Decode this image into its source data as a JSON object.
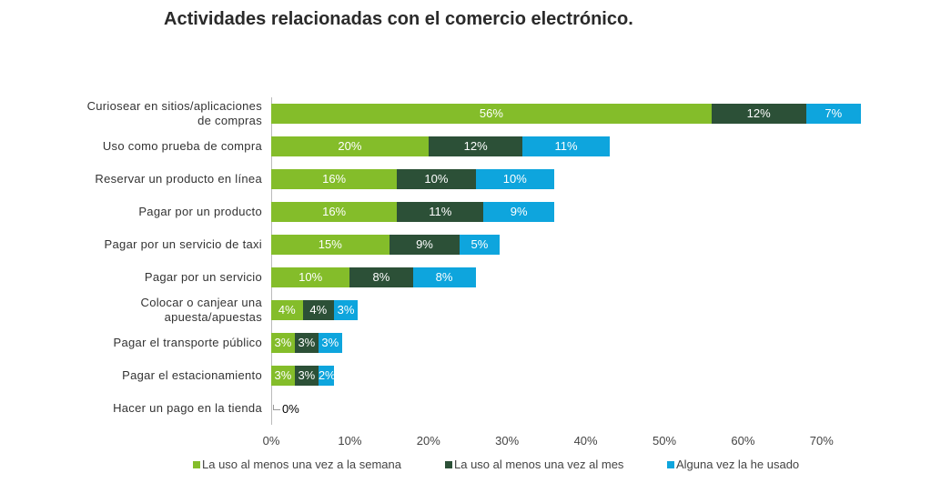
{
  "chart_data": {
    "type": "stacked_bar_horizontal",
    "title": "Actividades relacionadas con el comercio electrónico.",
    "categories": [
      "Curiosear en sitios/aplicaciones de compras",
      "Uso como prueba de compra",
      "Reservar un producto en línea",
      "Pagar por un producto",
      "Pagar por un servicio de taxi",
      "Pagar por un servicio",
      "Colocar o canjear una apuesta/apuestas",
      "Pagar el transporte público",
      "Pagar el estacionamiento",
      "Hacer un pago en la tienda"
    ],
    "series": [
      {
        "name": "La uso al menos una vez a la semana",
        "color": "#84bd2a",
        "values": [
          56,
          20,
          16,
          16,
          15,
          10,
          4,
          3,
          3,
          0
        ],
        "value_labels": [
          "56%",
          "20%",
          "16%",
          "16%",
          "15%",
          "10%",
          "4%",
          "3%",
          "3%",
          "0%"
        ]
      },
      {
        "name": "La uso al menos una vez al mes",
        "color": "#2c5037",
        "values": [
          12,
          12,
          10,
          11,
          9,
          8,
          4,
          3,
          3,
          0
        ],
        "value_labels": [
          "12%",
          "12%",
          "10%",
          "11%",
          "9%",
          "8%",
          "4%",
          "3%",
          "3%",
          null
        ]
      },
      {
        "name": "Alguna vez la he usado",
        "color": "#0ea5dd",
        "values": [
          7,
          11,
          10,
          9,
          5,
          8,
          3,
          3,
          2,
          0
        ],
        "value_labels": [
          "7%",
          "11%",
          "10%",
          "9%",
          "5%",
          "8%",
          "3%",
          "3%",
          "2%",
          null
        ]
      }
    ],
    "xlim": [
      0,
      75
    ],
    "xticks": [
      {
        "value": 0,
        "label": "0%"
      },
      {
        "value": 10,
        "label": "10%"
      },
      {
        "value": 20,
        "label": "20%"
      },
      {
        "value": 30,
        "label": "30%"
      },
      {
        "value": 40,
        "label": "40%"
      },
      {
        "value": 50,
        "label": "50%"
      },
      {
        "value": 60,
        "label": "60%"
      },
      {
        "value": 70,
        "label": "70%"
      }
    ],
    "legend": "bottom",
    "grid": false
  }
}
